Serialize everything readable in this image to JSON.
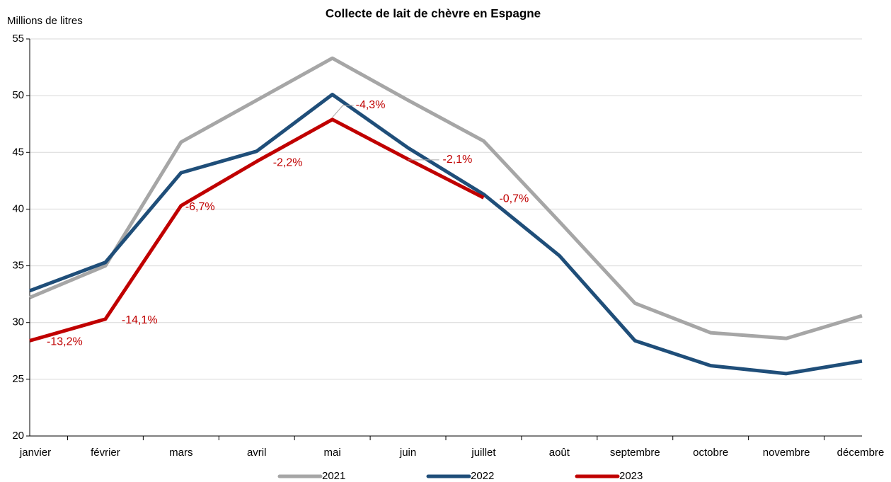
{
  "chart_data": {
    "type": "line",
    "title": "Collecte de lait de chèvre en Espagne",
    "y_axis_label": "Millions de litres",
    "categories": [
      "janvier",
      "février",
      "mars",
      "avril",
      "mai",
      "juin",
      "juillet",
      "août",
      "septembre",
      "octobre",
      "novembre",
      "décembre"
    ],
    "series": [
      {
        "name": "2021",
        "color": "#a6a6a6",
        "values": [
          32.2,
          35.0,
          45.9,
          49.6,
          53.3,
          49.6,
          46.0,
          38.9,
          31.7,
          29.1,
          28.6,
          30.6
        ]
      },
      {
        "name": "2022",
        "color": "#1f4e79",
        "values": [
          32.8,
          35.3,
          43.2,
          45.1,
          50.1,
          45.4,
          41.3,
          35.9,
          28.4,
          26.2,
          25.5,
          26.6
        ]
      },
      {
        "name": "2023",
        "color": "#c00000",
        "values": [
          28.4,
          30.3,
          40.3,
          44.2,
          47.9,
          44.4,
          41.0,
          null,
          null,
          null,
          null,
          null
        ]
      }
    ],
    "annotations": [
      "-13,2%",
      "-14,1%",
      "-6,7%",
      "-2,2%",
      "-4,3%",
      "-2,1%",
      "-0,7%"
    ],
    "ylim": [
      20,
      55
    ],
    "yticks": [
      20,
      25,
      30,
      35,
      40,
      45,
      50,
      55
    ],
    "grid": true,
    "legend": "bottom"
  }
}
